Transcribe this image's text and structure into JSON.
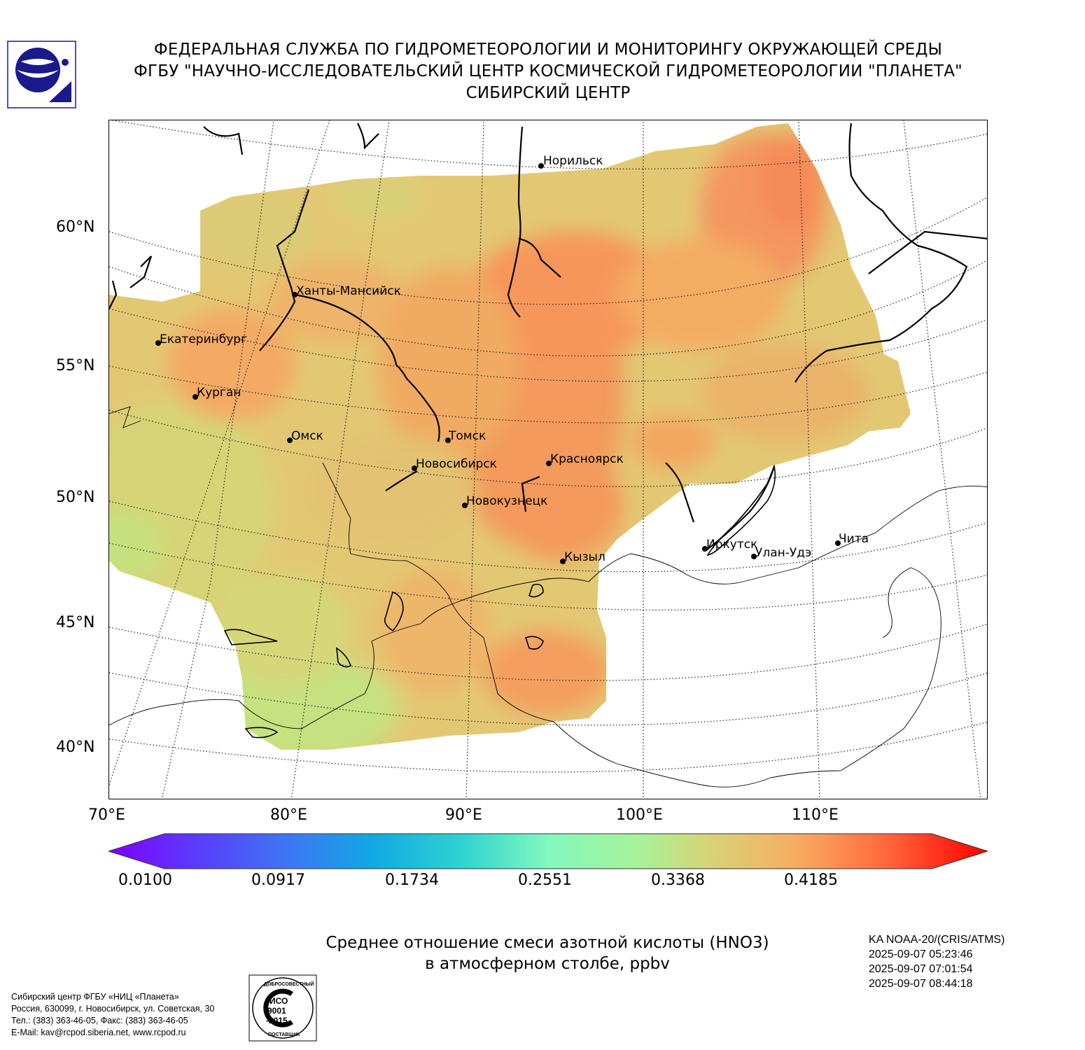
{
  "header": {
    "line1": "ФЕДЕРАЛЬНАЯ СЛУЖБА ПО ГИДРОМЕТЕОРОЛОГИИ И МОНИТОРИНГУ ОКРУЖАЮЩЕЙ СРЕДЫ",
    "line2": "ФГБУ \"НАУЧНО-ИССЛЕДОВАТЕЛЬСКИЙ ЦЕНТР КОСМИЧЕСКОЙ ГИДРОМЕТЕОРОЛОГИИ \"ПЛАНЕТА\"",
    "line3": "СИБИРСКИЙ ЦЕНТР"
  },
  "map": {
    "lat_labels": [
      "60°N",
      "55°N",
      "50°N",
      "45°N",
      "40°N"
    ],
    "lon_labels": [
      "70°E",
      "80°E",
      "90°E",
      "100°E",
      "110°E"
    ],
    "cities": [
      {
        "name": "Норильск"
      },
      {
        "name": "Ханты-Мансийск"
      },
      {
        "name": "Екатеринбург"
      },
      {
        "name": "Курган"
      },
      {
        "name": "Омск"
      },
      {
        "name": "Томск"
      },
      {
        "name": "Новосибирск"
      },
      {
        "name": "Красноярск"
      },
      {
        "name": "Новокузнецк"
      },
      {
        "name": "Кызыл"
      },
      {
        "name": "Иркутск"
      },
      {
        "name": "Улан-Удэ"
      },
      {
        "name": "Чита"
      }
    ]
  },
  "colorbar": {
    "ticks": [
      "0.0100",
      "0.0917",
      "0.1734",
      "0.2551",
      "0.3368",
      "0.4185"
    ],
    "min": 0.01,
    "max": 0.5
  },
  "title": {
    "line1": "Среднее отношение смеси азотной кислоты (HNO3)",
    "line2": "в атмосферном столбе, ppbv"
  },
  "satellite": {
    "name": "KA NOAA-20/(CRIS/ATMS)",
    "times": [
      "2025-09-07 05:23:46",
      "2025-09-07 07:01:54",
      "2025-09-07 08:44:18"
    ]
  },
  "organization": {
    "line1": "Сибирский центр ФГБУ «НИЦ «Планета»",
    "line2": "Россия, 630099, г. Новосибирск, ул. Советская, 30",
    "line3": "Тел.: (383) 363-46-05, Факс: (383) 363-46-05",
    "line4": "E-Mail: kav@rcpod.siberia.net, www.rcpod.ru"
  },
  "iso_badge": {
    "top": "ДОБРОСОВЕСТНЫЙ",
    "iso": "ИСО",
    "num": "9001",
    "year": "-2015",
    "bottom": "ПОСТАВЩИК"
  },
  "colors": {
    "field_green": "#cde17f",
    "field_yellow": "#e5c873",
    "field_orange": "#f5ad62",
    "field_deep": "#f7935a"
  }
}
